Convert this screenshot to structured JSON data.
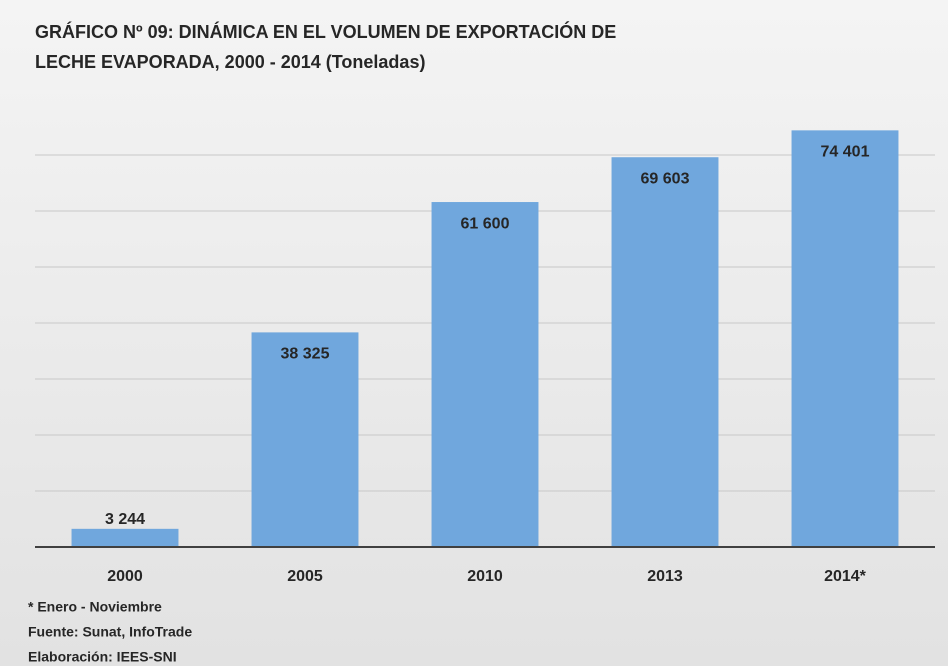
{
  "chart_data": {
    "type": "bar",
    "title": [
      "GRÁFICO Nº 09: DINÁMICA EN EL VOLUMEN DE EXPORTACIÓN DE",
      "LECHE EVAPORADA, 2000 - 2014 (Toneladas)"
    ],
    "categories": [
      "2000",
      "2005",
      "2010",
      "2013",
      "2014*"
    ],
    "values": [
      3244,
      38325,
      61600,
      69603,
      74401
    ],
    "value_labels": [
      "3 244",
      "38 325",
      "61 600",
      "69 603",
      "74 401"
    ],
    "color": "#70a7dd",
    "ylim": [
      0,
      80000
    ],
    "yticks": [
      0,
      10000,
      20000,
      30000,
      40000,
      50000,
      60000,
      70000
    ],
    "grid": true,
    "notes": [
      "* Enero - Noviembre",
      "Fuente: Sunat, InfoTrade",
      "Elaboración: IEES-SNI"
    ]
  }
}
